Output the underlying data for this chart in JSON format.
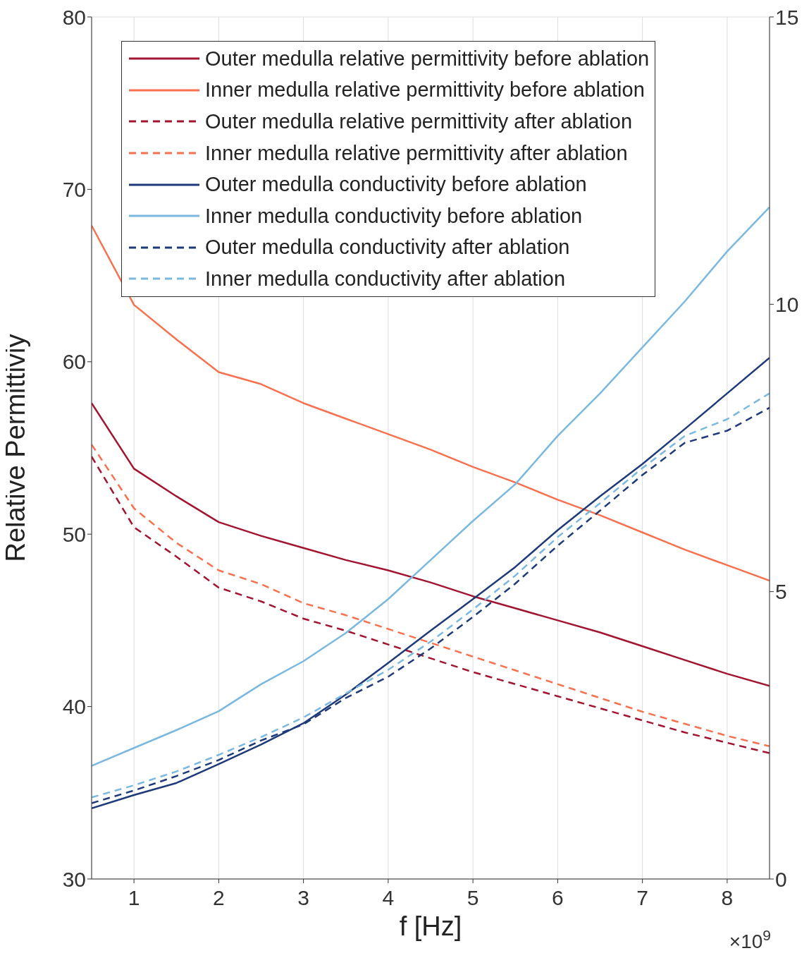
{
  "chart_data": {
    "type": "line",
    "xlabel": "f [Hz]",
    "ylabel": "Relative Permittiviy",
    "x": [
      0.5,
      1,
      1.5,
      2,
      2.5,
      3,
      3.5,
      4,
      4.5,
      5,
      5.5,
      6,
      6.5,
      7,
      7.5,
      8,
      8.5
    ],
    "xlim": [
      0.5,
      8.5
    ],
    "xticks": [
      1,
      2,
      3,
      4,
      5,
      6,
      7,
      8
    ],
    "ylim": [
      30,
      80
    ],
    "yticks": [
      30,
      40,
      50,
      60,
      70,
      80
    ],
    "y2lim": [
      0,
      15
    ],
    "y2ticks": [
      0,
      5,
      10,
      15
    ],
    "grid": true,
    "legend": "top",
    "marker": "none",
    "annotations": [
      "×10$^{9}$"
    ],
    "series": [
      {
        "name": "Outer medulla relative permittivity before ablation",
        "color": "#a2142f",
        "line_style": "solid",
        "values": [
          57.6,
          53.8,
          52.2,
          50.7,
          49.9,
          49.2,
          48.5,
          47.9,
          47.2,
          46.4,
          45.7,
          45.0,
          44.3,
          43.5,
          42.7,
          41.9,
          41.2
        ]
      },
      {
        "name": "Inner medulla relative permittivity before ablation",
        "color": "#f8714f",
        "line_style": "solid",
        "values": [
          67.9,
          63.3,
          61.3,
          59.4,
          58.7,
          57.6,
          56.7,
          55.8,
          54.9,
          53.9,
          53.0,
          52.0,
          51.1,
          50.1,
          49.1,
          48.2,
          47.3
        ]
      },
      {
        "name": "Outer medulla relative permittivity after ablation",
        "color": "#a2142f",
        "line_style": "dashed",
        "values": [
          54.5,
          50.4,
          48.7,
          46.9,
          46.1,
          45.1,
          44.4,
          43.6,
          42.8,
          42.0,
          41.3,
          40.6,
          39.9,
          39.2,
          38.5,
          37.9,
          37.3
        ]
      },
      {
        "name": "Inner medulla relative permittivity after ablation",
        "color": "#f8714f",
        "line_style": "dashed",
        "values": [
          55.2,
          51.5,
          49.5,
          47.9,
          47.1,
          46.0,
          45.3,
          44.5,
          43.7,
          42.9,
          42.1,
          41.3,
          40.5,
          39.7,
          39.0,
          38.3,
          37.7
        ]
      },
      {
        "name": "Outer medulla conductivity before ablation",
        "color": "#1f3a7a",
        "line_style": "solid",
        "axis": "y2",
        "values": [
          1.23,
          1.46,
          1.67,
          2.0,
          2.34,
          2.71,
          3.21,
          3.76,
          4.32,
          4.87,
          5.43,
          6.07,
          6.66,
          7.22,
          7.83,
          8.45,
          9.07
        ]
      },
      {
        "name": "Inner medulla conductivity before ablation",
        "color": "#7ab8e0",
        "line_style": "solid",
        "axis": "y2",
        "values": [
          1.97,
          2.28,
          2.59,
          2.92,
          3.39,
          3.79,
          4.28,
          4.87,
          5.55,
          6.23,
          6.87,
          7.71,
          8.45,
          9.25,
          10.05,
          10.92,
          11.69
        ]
      },
      {
        "name": "Outer medulla conductivity after ablation",
        "color": "#1f3a7a",
        "line_style": "dashed",
        "axis": "y2",
        "values": [
          1.32,
          1.54,
          1.79,
          2.07,
          2.41,
          2.69,
          3.15,
          3.52,
          4.01,
          4.56,
          5.14,
          5.8,
          6.41,
          7.03,
          7.59,
          7.8,
          8.2
        ]
      },
      {
        "name": "Inner medulla conductivity after ablation",
        "color": "#7ab8e0",
        "line_style": "dashed",
        "axis": "y2",
        "values": [
          1.42,
          1.63,
          1.87,
          2.16,
          2.47,
          2.81,
          3.23,
          3.64,
          4.13,
          4.69,
          5.28,
          5.95,
          6.54,
          7.15,
          7.71,
          8.0,
          8.45
        ]
      }
    ]
  }
}
